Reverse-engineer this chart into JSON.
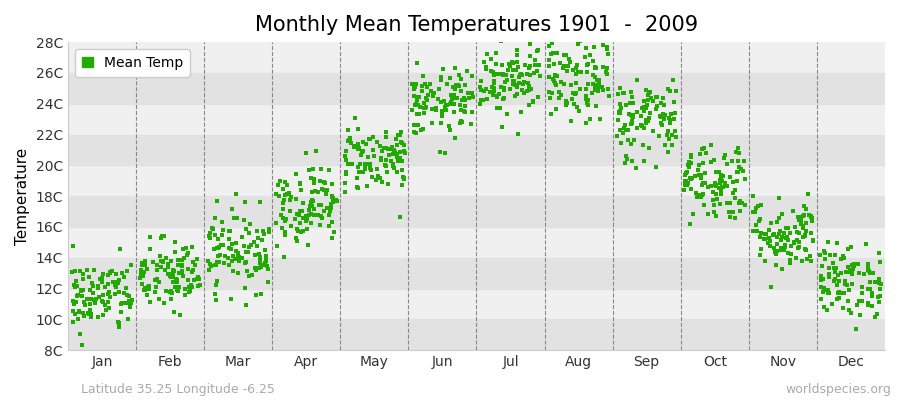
{
  "title": "Monthly Mean Temperatures 1901  -  2009",
  "ylabel": "Temperature",
  "xlabel": "",
  "subtitle_left": "Latitude 35.25 Longitude -6.25",
  "subtitle_right": "worldspecies.org",
  "legend_label": "Mean Temp",
  "dot_color": "#22aa00",
  "background_color": "#ffffff",
  "plot_bg_color": "#f0f0f0",
  "stripe_color": "#e2e2e2",
  "ylim": [
    8,
    28
  ],
  "yticks": [
    8,
    10,
    12,
    14,
    16,
    18,
    20,
    22,
    24,
    26,
    28
  ],
  "ytick_labels": [
    "8C",
    "10C",
    "12C",
    "14C",
    "16C",
    "18C",
    "20C",
    "22C",
    "24C",
    "26C",
    "28C"
  ],
  "months": [
    "Jan",
    "Feb",
    "Mar",
    "Apr",
    "May",
    "Jun",
    "Jul",
    "Aug",
    "Sep",
    "Oct",
    "Nov",
    "Dec"
  ],
  "monthly_mean": [
    11.5,
    12.8,
    14.5,
    17.5,
    20.5,
    24.0,
    25.8,
    25.5,
    23.0,
    19.0,
    15.5,
    12.5
  ],
  "monthly_std": [
    1.2,
    1.2,
    1.3,
    1.3,
    1.1,
    1.1,
    1.3,
    1.4,
    1.4,
    1.3,
    1.2,
    1.2
  ],
  "n_years": 109,
  "seed": 42,
  "marker_size": 5,
  "title_fontsize": 15,
  "axis_fontsize": 11,
  "tick_fontsize": 10,
  "legend_fontsize": 10,
  "subtitle_fontsize": 9
}
